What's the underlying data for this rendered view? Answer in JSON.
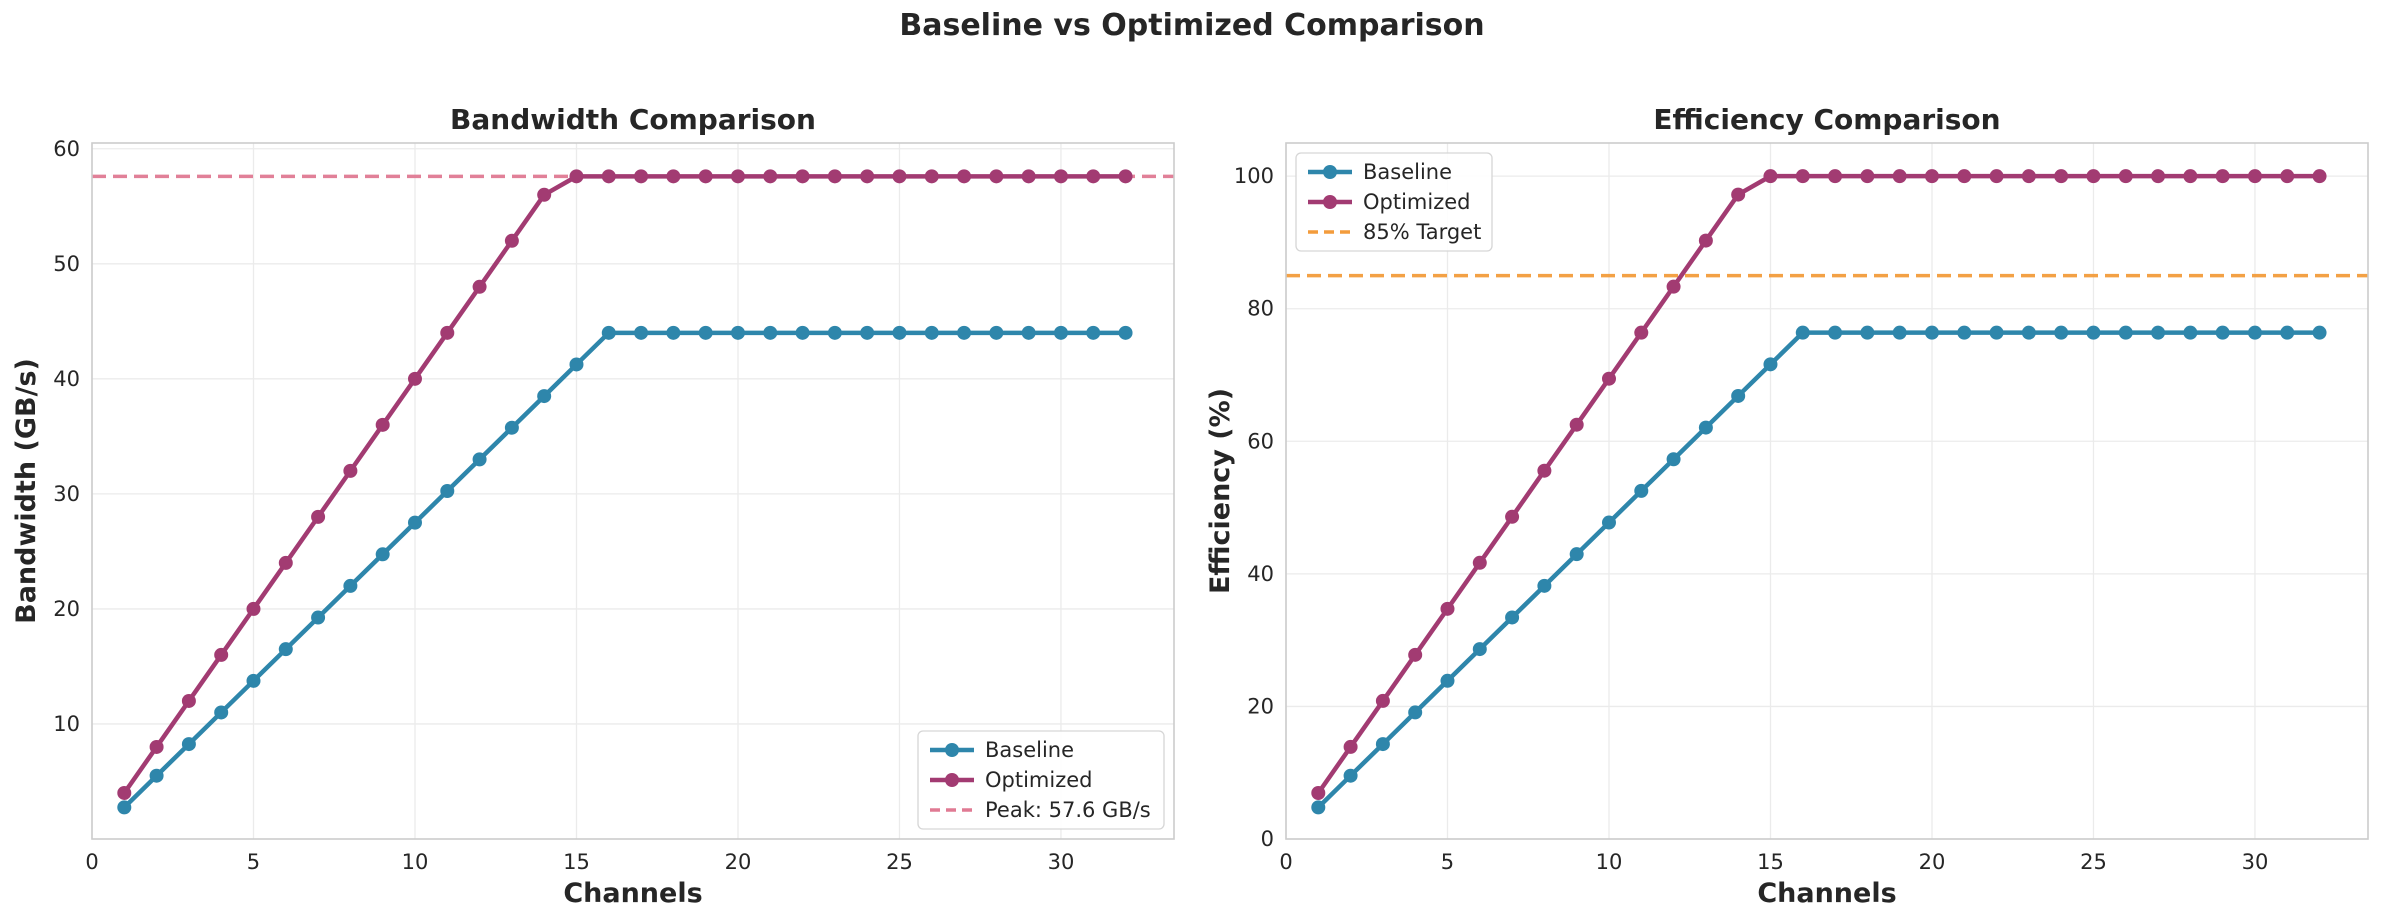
{
  "figure": {
    "title": "Baseline vs Optimized Comparison"
  },
  "chart_data": [
    {
      "type": "line",
      "title": "Bandwidth Comparison",
      "xlabel": "Channels",
      "ylabel": "Bandwidth (GB/s)",
      "xlim": [
        0,
        33.5
      ],
      "ylim": [
        0,
        60.5
      ],
      "xticks": [
        0,
        5,
        10,
        15,
        20,
        25,
        30
      ],
      "yticks": [
        10,
        20,
        30,
        40,
        50,
        60
      ],
      "grid": true,
      "legend_position": "lower-right",
      "x": [
        1,
        2,
        3,
        4,
        5,
        6,
        7,
        8,
        9,
        10,
        11,
        12,
        13,
        14,
        15,
        16,
        17,
        18,
        19,
        20,
        21,
        22,
        23,
        24,
        25,
        26,
        27,
        28,
        29,
        30,
        31,
        32
      ],
      "series": [
        {
          "name": "Baseline",
          "color": "#2e86ab",
          "marker": "circle",
          "values": [
            2.75,
            5.5,
            8.25,
            11.0,
            13.75,
            16.5,
            19.25,
            22.0,
            24.75,
            27.5,
            30.25,
            33.0,
            35.75,
            38.5,
            41.25,
            44.0,
            44.0,
            44.0,
            44.0,
            44.0,
            44.0,
            44.0,
            44.0,
            44.0,
            44.0,
            44.0,
            44.0,
            44.0,
            44.0,
            44.0,
            44.0,
            44.0
          ]
        },
        {
          "name": "Optimized",
          "color": "#a23b72",
          "marker": "circle",
          "values": [
            4.0,
            8.0,
            12.0,
            16.0,
            20.0,
            24.0,
            28.0,
            32.0,
            36.0,
            40.0,
            44.0,
            48.0,
            52.0,
            56.0,
            57.6,
            57.6,
            57.6,
            57.6,
            57.6,
            57.6,
            57.6,
            57.6,
            57.6,
            57.6,
            57.6,
            57.6,
            57.6,
            57.6,
            57.6,
            57.6,
            57.6,
            57.6
          ]
        }
      ],
      "reference_lines": [
        {
          "name": "Peak: 57.6 GB/s",
          "y": 57.6,
          "color": "#e07a93",
          "style": "dashed"
        }
      ]
    },
    {
      "type": "line",
      "title": "Efficiency Comparison",
      "xlabel": "Channels",
      "ylabel": "Efficiency (%)",
      "xlim": [
        0,
        33.5
      ],
      "ylim": [
        0,
        105
      ],
      "xticks": [
        0,
        5,
        10,
        15,
        20,
        25,
        30
      ],
      "yticks": [
        0,
        20,
        40,
        60,
        80,
        100
      ],
      "grid": true,
      "legend_position": "upper-left",
      "x": [
        1,
        2,
        3,
        4,
        5,
        6,
        7,
        8,
        9,
        10,
        11,
        12,
        13,
        14,
        15,
        16,
        17,
        18,
        19,
        20,
        21,
        22,
        23,
        24,
        25,
        26,
        27,
        28,
        29,
        30,
        31,
        32
      ],
      "series": [
        {
          "name": "Baseline",
          "color": "#2e86ab",
          "marker": "circle",
          "values": [
            4.77,
            9.55,
            14.32,
            19.1,
            23.87,
            28.65,
            33.42,
            38.19,
            42.97,
            47.74,
            52.52,
            57.29,
            62.07,
            66.84,
            71.61,
            76.39,
            76.39,
            76.39,
            76.39,
            76.39,
            76.39,
            76.39,
            76.39,
            76.39,
            76.39,
            76.39,
            76.39,
            76.39,
            76.39,
            76.39,
            76.39,
            76.39
          ]
        },
        {
          "name": "Optimized",
          "color": "#a23b72",
          "marker": "circle",
          "values": [
            6.94,
            13.89,
            20.83,
            27.78,
            34.72,
            41.67,
            48.61,
            55.56,
            62.5,
            69.44,
            76.39,
            83.33,
            90.28,
            97.22,
            100,
            100,
            100,
            100,
            100,
            100,
            100,
            100,
            100,
            100,
            100,
            100,
            100,
            100,
            100,
            100,
            100,
            100
          ]
        }
      ],
      "reference_lines": [
        {
          "name": "85% Target",
          "y": 85,
          "color": "#f39c3c",
          "style": "dashed"
        }
      ]
    }
  ]
}
